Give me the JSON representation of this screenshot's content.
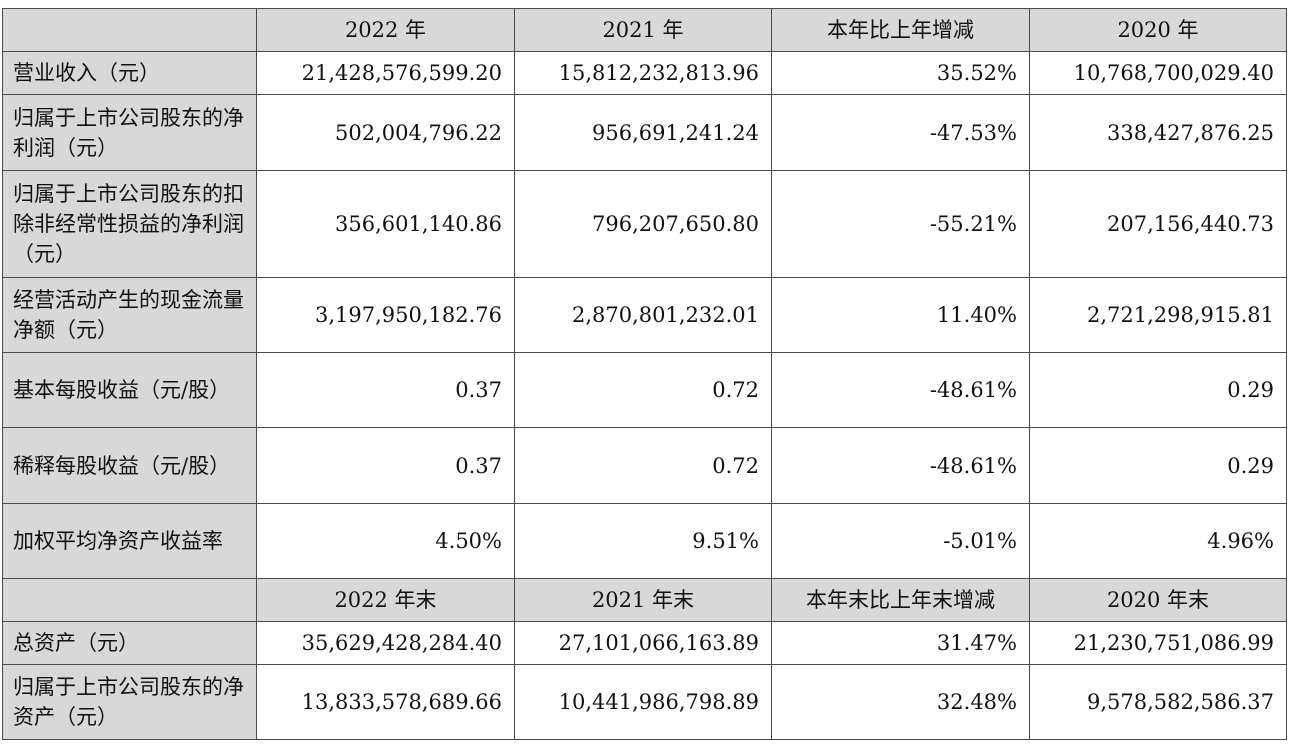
{
  "header1": [
    "",
    "2022 年",
    "2021 年",
    "本年比上年增减",
    "2020 年"
  ],
  "rows1": [
    {
      "label": "营业收入（元）",
      "values": [
        "21,428,576,599.20",
        "15,812,232,813.96",
        "35.52%",
        "10,768,700,029.40"
      ]
    },
    {
      "label": "归属于上市公司股东的净利润（元）",
      "values": [
        "502,004,796.22",
        "956,691,241.24",
        "-47.53%",
        "338,427,876.25"
      ]
    },
    {
      "label": "归属于上市公司股东的扣除非经常性损益的净利润（元）",
      "values": [
        "356,601,140.86",
        "796,207,650.80",
        "-55.21%",
        "207,156,440.73"
      ]
    },
    {
      "label": "经营活动产生的现金流量净额（元）",
      "values": [
        "3,197,950,182.76",
        "2,870,801,232.01",
        "11.40%",
        "2,721,298,915.81"
      ]
    },
    {
      "label": "基本每股收益（元/股）",
      "values": [
        "0.37",
        "0.72",
        "-48.61%",
        "0.29"
      ]
    },
    {
      "label": "稀释每股收益（元/股）",
      "values": [
        "0.37",
        "0.72",
        "-48.61%",
        "0.29"
      ]
    },
    {
      "label": "加权平均净资产收益率",
      "values": [
        "4.50%",
        "9.51%",
        "-5.01%",
        "4.96%"
      ]
    }
  ],
  "header2": [
    "",
    "2022 年末",
    "2021 年末",
    "本年末比上年末增减",
    "2020 年末"
  ],
  "rows2": [
    {
      "label": "总资产（元）",
      "values": [
        "35,629,428,284.40",
        "27,101,066,163.89",
        "31.47%",
        "21,230,751,086.99"
      ]
    },
    {
      "label": "归属于上市公司股东的净资产（元）",
      "values": [
        "13,833,578,689.66",
        "10,441,986,798.89",
        "32.48%",
        "9,578,582,586.37"
      ]
    }
  ]
}
